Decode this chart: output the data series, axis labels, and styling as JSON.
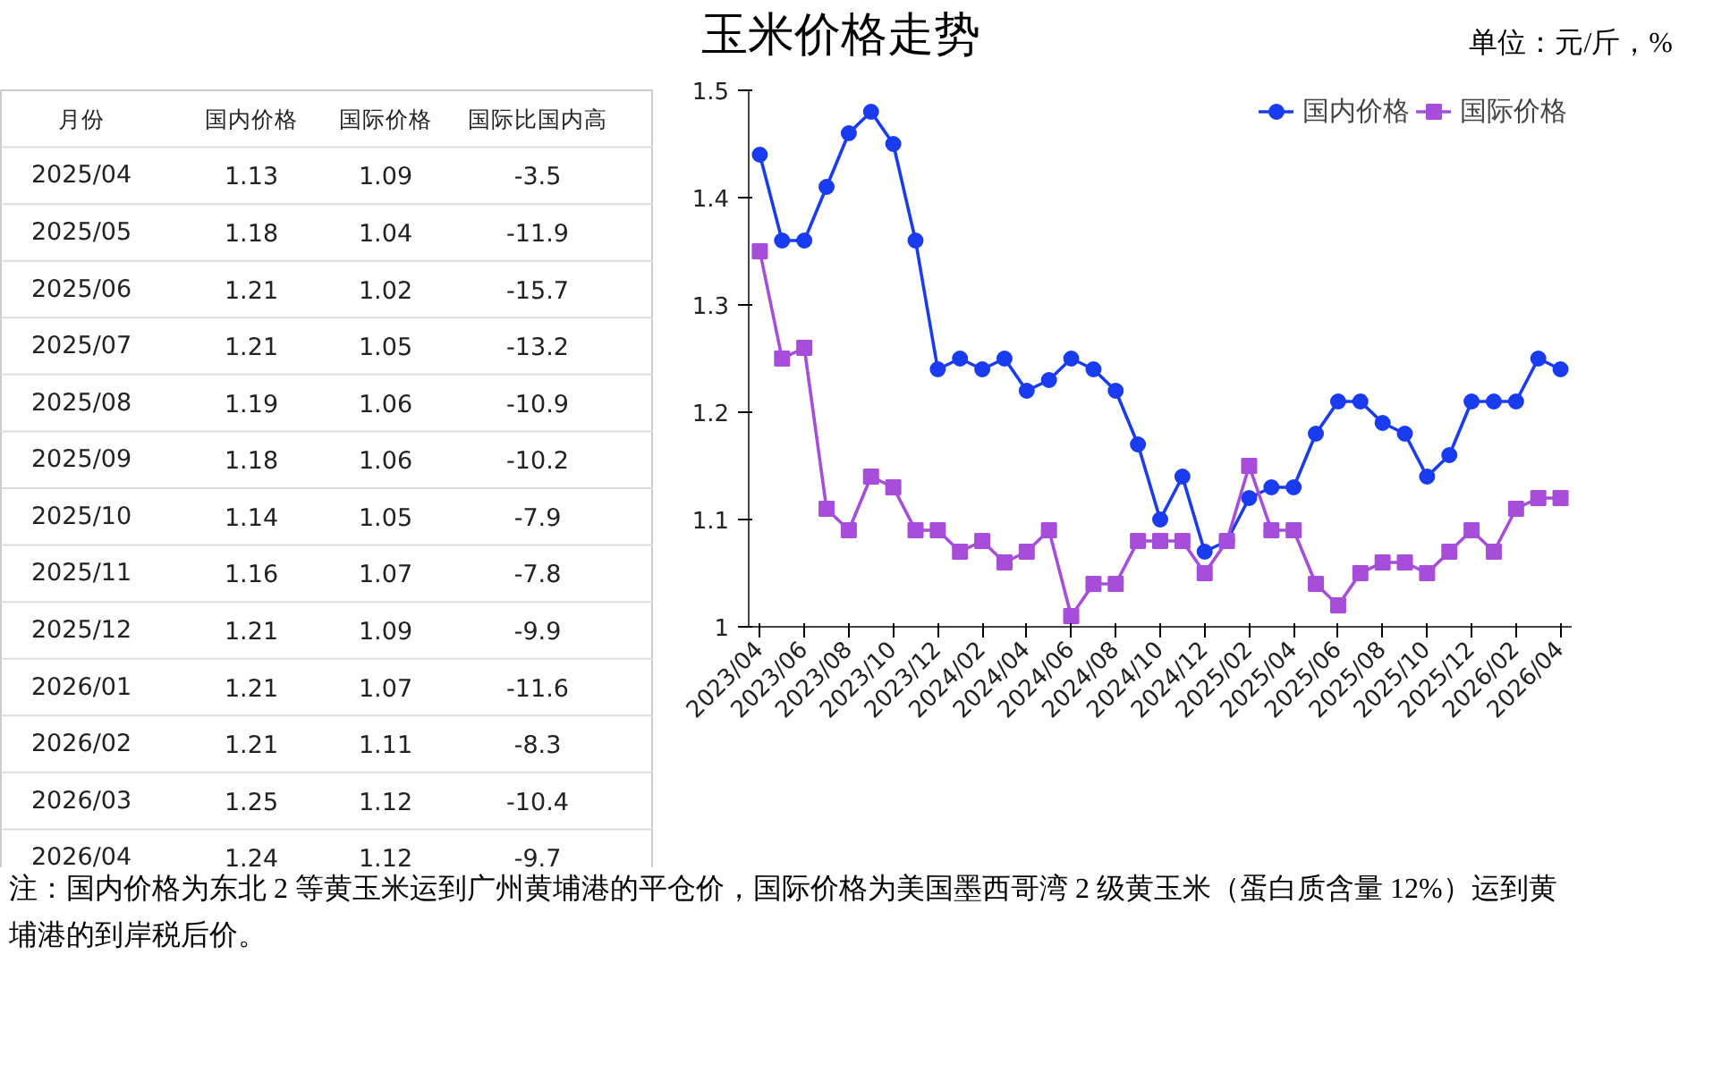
{
  "chart_data": [
    {
      "type": "other",
      "title": "玉米价格走势",
      "ylabel": "月份",
      "data_labels": true,
      "annotations": [
        "单位：元/斤，%",
        "注：国内价格为东北 2 等黄玉米运到广州黄埔港的平仓价，国际价格为美国墨西哥湾 2 级黄玉米（蛋白质含量 12%）运到黄埔港的到岸税后价。"
      ],
      "categories": [
        "2025/04",
        "2025/05",
        "2025/06",
        "2025/07",
        "2025/08",
        "2025/09",
        "2025/10",
        "2025/11",
        "2025/12",
        "2026/01",
        "2026/02",
        "2026/03",
        "2026/04"
      ],
      "series": [
        {
          "name": "国内价格",
          "values": [
            1.13,
            1.18,
            1.21,
            1.21,
            1.19,
            1.18,
            1.14,
            1.16,
            1.21,
            1.21,
            1.21,
            1.25,
            1.24
          ]
        },
        {
          "name": "国际价格",
          "values": [
            1.09,
            1.04,
            1.02,
            1.05,
            1.06,
            1.06,
            1.05,
            1.07,
            1.09,
            1.07,
            1.11,
            1.12,
            1.12
          ]
        },
        {
          "name": "国际比国内高",
          "values": [
            -3.5,
            -11.9,
            -15.7,
            -13.2,
            -10.9,
            -10.2,
            -7.9,
            -7.8,
            -9.9,
            -11.6,
            -8.3,
            -10.4,
            -9.7
          ]
        }
      ]
    },
    {
      "type": "line",
      "ylim": [
        1,
        1.5
      ],
      "yticks": [
        1,
        1.1,
        1.2,
        1.3,
        1.4,
        1.5
      ],
      "grid": false,
      "legend": "top right",
      "categories": [
        "2023/04",
        null,
        "2023/06",
        null,
        "2023/08",
        null,
        "2023/10",
        null,
        "2023/12",
        null,
        "2024/02",
        null,
        "2024/04",
        null,
        "2024/06",
        null,
        "2024/08",
        null,
        "2024/10",
        null,
        "2024/12",
        null,
        "2025/02",
        null,
        "2025/04",
        null,
        "2025/06",
        null,
        "2025/08",
        null,
        "2025/10",
        null,
        "2025/12",
        null,
        "2026/02",
        null,
        "2026/04"
      ],
      "series": [
        {
          "name": "国内价格",
          "color": "#1a3cf0",
          "marker": "circle",
          "values": [
            1.44,
            1.36,
            1.36,
            1.41,
            1.46,
            1.48,
            1.45,
            1.36,
            1.24,
            1.25,
            1.24,
            1.25,
            1.22,
            1.23,
            1.25,
            1.24,
            1.22,
            1.17,
            1.1,
            1.14,
            1.07,
            1.08,
            1.12,
            1.13,
            1.13,
            1.18,
            1.21,
            1.21,
            1.19,
            1.18,
            1.14,
            1.16,
            1.21,
            1.21,
            1.21,
            1.25,
            1.24
          ]
        },
        {
          "name": "国际价格",
          "color": "#a64ddb",
          "marker": "square",
          "values": [
            1.35,
            1.25,
            1.26,
            1.11,
            1.09,
            1.14,
            1.13,
            1.09,
            1.09,
            1.07,
            1.08,
            1.06,
            1.07,
            1.09,
            1.01,
            1.04,
            1.04,
            1.08,
            1.08,
            1.08,
            1.05,
            1.08,
            1.15,
            1.09,
            1.09,
            1.04,
            1.02,
            1.05,
            1.06,
            1.06,
            1.05,
            1.07,
            1.09,
            1.07,
            1.11,
            1.12,
            1.12
          ]
        }
      ]
    }
  ]
}
